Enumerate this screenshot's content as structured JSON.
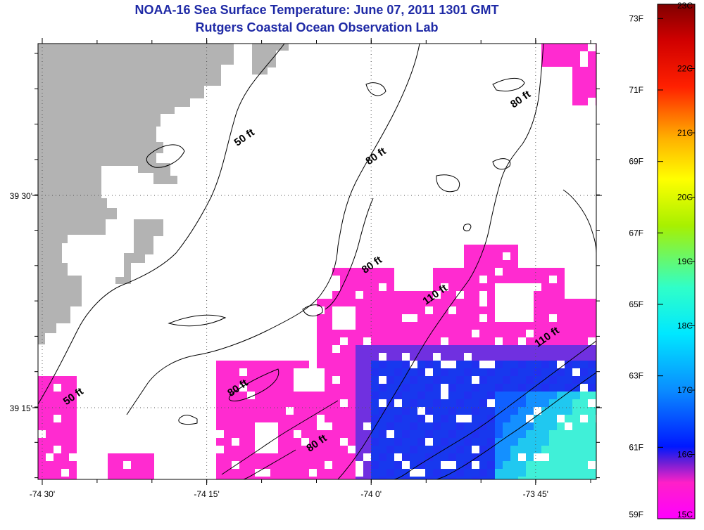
{
  "header": {
    "title": "NOAA-16 Sea Surface Temperature:  June 07, 2011 1301 GMT",
    "subtitle": "Rutgers Coastal Ocean Observation Lab"
  },
  "map": {
    "lon_ticks": [
      {
        "value": -74.5,
        "label": "-74 30'"
      },
      {
        "value": -74.25,
        "label": "-74 15'"
      },
      {
        "value": -74.0,
        "label": "-74 0'"
      },
      {
        "value": -73.75,
        "label": "-73 45'"
      }
    ],
    "lat_ticks": [
      {
        "value": 39.5,
        "label": "39 30'"
      },
      {
        "value": 39.25,
        "label": "39 15'"
      }
    ],
    "contour_labels": [
      {
        "text": "50 ft",
        "lon": -74.19,
        "lat": 39.565
      },
      {
        "text": "80 ft",
        "lon": -73.99,
        "lat": 39.543
      },
      {
        "text": "80 ft",
        "lon": -73.996,
        "lat": 39.415
      },
      {
        "text": "80 ft",
        "lon": -73.77,
        "lat": 39.61
      },
      {
        "text": "110 ft",
        "lon": -73.9,
        "lat": 39.38
      },
      {
        "text": "110 ft",
        "lon": -73.73,
        "lat": 39.33
      },
      {
        "text": "80 ft",
        "lon": -74.2,
        "lat": 39.27
      },
      {
        "text": "50 ft",
        "lon": -74.45,
        "lat": 39.26
      },
      {
        "text": "80 ft",
        "lon": -74.08,
        "lat": 39.205
      }
    ],
    "colors": {
      "land": "#b3b3b3",
      "sst_warm_patch": "#ff2bd0",
      "sst_cool_patch": "#1838ee",
      "contour": "#000000"
    }
  },
  "colorbar": {
    "fahrenheit_labels": [
      "73F",
      "71F",
      "69F",
      "67F",
      "65F",
      "63F",
      "61F",
      "59F"
    ],
    "celsius_labels": [
      "23C",
      "22C",
      "21C",
      "20C",
      "19C",
      "18C",
      "17C",
      "16C",
      "15C"
    ],
    "range_c": [
      15,
      23
    ]
  }
}
